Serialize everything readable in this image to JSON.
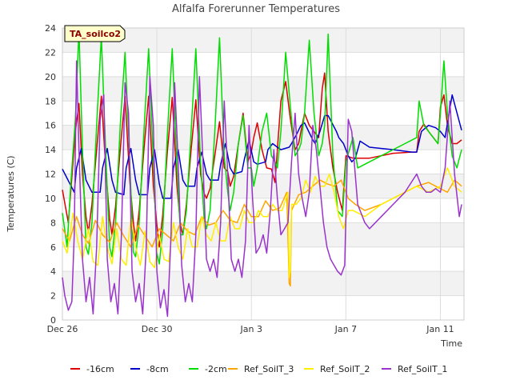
{
  "chart_data": {
    "type": "line",
    "title": "Alfalfa Forerunner Temperatures",
    "xlabel": "Time",
    "ylabel": "Temperatures (C)",
    "site_tag": "TA_soilco2",
    "x_unit": "days from Dec 26 00:00",
    "xlim": [
      0,
      17
    ],
    "ylim": [
      0,
      24
    ],
    "y_ticks": [
      0,
      2,
      4,
      6,
      8,
      10,
      12,
      14,
      16,
      18,
      20,
      22,
      24
    ],
    "x_ticks": [
      {
        "value": 0,
        "label": "Dec 26"
      },
      {
        "value": 4,
        "label": "Dec 30"
      },
      {
        "value": 8,
        "label": "Jan 3"
      },
      {
        "value": 12,
        "label": "Jan 7"
      },
      {
        "value": 16,
        "label": "Jan 11"
      }
    ],
    "grid": true,
    "band_colors": [
      "#ffffff",
      "#f2f2f2"
    ],
    "legend_position": "bottom",
    "series": [
      {
        "name": "-16cm",
        "color": "#dd0000",
        "x": [
          0.0,
          0.25,
          0.45,
          0.55,
          0.7,
          0.85,
          1.0,
          1.1,
          1.25,
          1.45,
          1.65,
          1.85,
          2.0,
          2.1,
          2.25,
          2.45,
          2.65,
          2.85,
          3.0,
          3.1,
          3.25,
          3.45,
          3.65,
          3.85,
          4.0,
          4.1,
          4.25,
          4.45,
          4.65,
          4.85,
          5.0,
          5.1,
          5.25,
          5.45,
          5.65,
          5.85,
          6.0,
          6.1,
          6.25,
          6.45,
          6.65,
          6.85,
          7.0,
          7.1,
          7.25,
          7.45,
          7.65,
          7.85,
          8.0,
          8.1,
          8.25,
          8.45,
          8.65,
          8.85,
          9.0,
          9.1,
          9.25,
          9.45,
          9.65,
          9.85,
          10.0,
          10.1,
          10.25,
          10.45,
          10.65,
          10.85,
          11.0,
          11.1,
          11.25,
          11.45,
          11.65,
          11.85,
          12.0,
          12.3,
          13.0,
          14.0,
          14.8,
          15.0,
          15.1,
          15.3,
          15.5,
          15.7,
          15.9,
          16.0,
          16.15,
          16.3,
          16.5,
          16.7,
          16.9
        ],
        "y": [
          10.7,
          8.0,
          13.0,
          15.5,
          17.8,
          12.0,
          8.5,
          7.2,
          9.5,
          14.0,
          18.4,
          12.0,
          8.3,
          7.0,
          9.3,
          14.0,
          18.4,
          11.5,
          8.1,
          6.5,
          9.0,
          14.0,
          18.4,
          11.0,
          7.8,
          6.0,
          8.7,
          14.0,
          18.3,
          11.0,
          7.8,
          7.0,
          9.5,
          14.0,
          18.1,
          12.0,
          10.4,
          10.0,
          10.8,
          13.5,
          16.3,
          12.5,
          12.2,
          11.0,
          11.8,
          14.5,
          17.0,
          13.0,
          13.8,
          15.0,
          16.2,
          14.0,
          12.5,
          12.4,
          11.3,
          14.0,
          18.0,
          19.6,
          16.5,
          14.0,
          14.5,
          15.5,
          17.0,
          16.0,
          15.5,
          15.0,
          19.0,
          20.3,
          15.5,
          12.5,
          10.5,
          9.0,
          13.5,
          13.3,
          13.3,
          13.7,
          13.8,
          13.8,
          15.5,
          16.1,
          15.5,
          15.0,
          14.5,
          17.5,
          18.5,
          16.0,
          14.5,
          14.5,
          14.8
        ]
      },
      {
        "name": "-8cm",
        "color": "#0000cc",
        "x": [
          0.0,
          0.5,
          0.6,
          0.8,
          1.0,
          1.25,
          1.6,
          1.7,
          1.9,
          2.1,
          2.25,
          2.6,
          2.7,
          2.9,
          3.1,
          3.25,
          3.6,
          3.7,
          3.9,
          4.1,
          4.25,
          4.6,
          4.7,
          4.9,
          5.1,
          5.25,
          5.6,
          5.7,
          5.9,
          6.1,
          6.25,
          6.6,
          6.7,
          6.9,
          7.1,
          7.25,
          7.6,
          7.7,
          7.9,
          8.1,
          8.25,
          8.6,
          8.7,
          8.9,
          9.1,
          9.25,
          9.6,
          9.7,
          9.9,
          10.1,
          10.25,
          10.6,
          10.7,
          10.9,
          11.1,
          11.25,
          11.6,
          11.7,
          11.9,
          12.1,
          12.25,
          12.4,
          12.6,
          13.0,
          14.0,
          14.8,
          15.0,
          15.2,
          15.5,
          15.8,
          16.0,
          16.2,
          16.5,
          16.9
        ],
        "y": [
          12.4,
          10.5,
          12.5,
          14.1,
          11.5,
          10.5,
          10.5,
          12.5,
          14.1,
          11.5,
          10.5,
          10.3,
          12.5,
          14.1,
          11.5,
          10.3,
          10.3,
          12.5,
          14.0,
          11.2,
          10.0,
          10.0,
          12.5,
          14.0,
          11.5,
          11.0,
          11.0,
          12.5,
          13.8,
          12.0,
          11.5,
          11.5,
          12.8,
          14.5,
          12.5,
          12.0,
          12.2,
          13.2,
          14.8,
          13.0,
          12.8,
          13.0,
          14.0,
          14.5,
          14.2,
          14.0,
          14.2,
          14.5,
          15.2,
          16.0,
          16.2,
          14.8,
          14.5,
          15.5,
          16.8,
          16.8,
          15.5,
          15.0,
          14.5,
          13.5,
          13.0,
          13.3,
          14.7,
          14.2,
          14.0,
          13.8,
          13.8,
          15.5,
          16.0,
          15.8,
          15.5,
          15.0,
          18.5,
          15.6
        ]
      },
      {
        "name": "-2cm",
        "color": "#00dd00",
        "x": [
          0.0,
          0.2,
          0.35,
          0.55,
          0.7,
          0.85,
          1.0,
          1.1,
          1.25,
          1.45,
          1.65,
          1.85,
          2.0,
          2.1,
          2.25,
          2.45,
          2.65,
          2.85,
          3.0,
          3.1,
          3.25,
          3.45,
          3.65,
          3.85,
          4.0,
          4.1,
          4.25,
          4.45,
          4.65,
          4.85,
          5.0,
          5.1,
          5.25,
          5.45,
          5.65,
          5.85,
          6.0,
          6.1,
          6.25,
          6.45,
          6.65,
          6.85,
          7.0,
          7.1,
          7.25,
          7.45,
          7.65,
          7.85,
          8.0,
          8.1,
          8.25,
          8.45,
          8.65,
          8.85,
          9.0,
          9.1,
          9.25,
          9.45,
          9.65,
          9.85,
          10.0,
          10.1,
          10.25,
          10.45,
          10.65,
          10.85,
          11.0,
          11.1,
          11.25,
          11.45,
          11.65,
          11.85,
          12.0,
          12.3,
          12.5,
          13.5,
          14.5,
          15.0,
          15.1,
          15.3,
          15.5,
          15.7,
          15.9,
          16.0,
          16.15,
          16.3,
          16.5,
          16.7,
          16.9
        ],
        "y": [
          8.8,
          6.0,
          11.0,
          16.5,
          23.8,
          14.0,
          6.0,
          5.4,
          8.0,
          16.0,
          23.3,
          13.0,
          6.0,
          5.2,
          8.0,
          16.0,
          22.0,
          13.0,
          5.6,
          5.2,
          8.0,
          15.5,
          22.3,
          13.0,
          5.5,
          4.6,
          7.5,
          15.5,
          22.3,
          12.5,
          7.0,
          7.0,
          9.0,
          15.5,
          22.3,
          13.0,
          8.3,
          7.5,
          9.0,
          15.5,
          23.2,
          13.5,
          10.5,
          9.0,
          10.5,
          14.5,
          16.8,
          12.5,
          12.5,
          11.0,
          12.5,
          15.5,
          17.0,
          13.5,
          13.0,
          12.5,
          15.5,
          22.0,
          17.5,
          13.5,
          14.0,
          14.5,
          17.0,
          23.0,
          17.0,
          13.5,
          14.5,
          16.0,
          23.5,
          13.5,
          9.0,
          8.5,
          13.0,
          15.0,
          12.5,
          13.5,
          14.5,
          15.0,
          18.0,
          16.0,
          15.5,
          15.0,
          14.5,
          17.0,
          21.3,
          17.0,
          13.5,
          12.5,
          14.0
        ]
      },
      {
        "name": "Ref_SoilT_3",
        "color": "#ffa500",
        "x": [
          0.0,
          0.3,
          0.6,
          0.85,
          1.1,
          1.4,
          1.7,
          2.0,
          2.3,
          2.6,
          2.9,
          3.2,
          3.5,
          3.8,
          4.1,
          4.4,
          4.7,
          5.0,
          5.3,
          5.6,
          5.9,
          6.2,
          6.5,
          6.8,
          7.1,
          7.4,
          7.7,
          8.0,
          8.3,
          8.6,
          8.9,
          9.2,
          9.5,
          9.6,
          9.65,
          9.7,
          10.0,
          10.3,
          10.6,
          10.9,
          11.2,
          11.5,
          11.8,
          12.1,
          12.4,
          12.8,
          13.5,
          14.5,
          15.0,
          15.5,
          16.0,
          16.3,
          16.6,
          16.9
        ],
        "y": [
          7.5,
          6.5,
          8.5,
          7.0,
          6.3,
          8.2,
          7.0,
          6.4,
          8.0,
          6.9,
          6.0,
          7.8,
          6.9,
          6.0,
          7.5,
          7.0,
          6.5,
          8.0,
          7.3,
          7.0,
          8.5,
          7.8,
          8.0,
          9.0,
          8.2,
          8.0,
          9.5,
          8.5,
          8.5,
          9.8,
          9.0,
          9.2,
          10.5,
          3.0,
          2.8,
          9.0,
          10.3,
          10.5,
          11.0,
          11.5,
          11.2,
          11.0,
          11.5,
          10.0,
          9.5,
          9.0,
          9.5,
          10.5,
          11.0,
          11.3,
          10.8,
          10.5,
          11.5,
          11.0
        ]
      },
      {
        "name": "Ref_SoilT_2",
        "color": "#ffee00",
        "x": [
          0.0,
          0.2,
          0.45,
          0.65,
          0.85,
          1.1,
          1.3,
          1.5,
          1.7,
          1.9,
          2.1,
          2.3,
          2.5,
          2.7,
          2.9,
          3.1,
          3.3,
          3.5,
          3.7,
          3.9,
          4.1,
          4.3,
          4.5,
          4.7,
          4.9,
          5.1,
          5.3,
          5.5,
          5.7,
          5.9,
          6.1,
          6.3,
          6.5,
          6.7,
          6.9,
          7.1,
          7.3,
          7.5,
          7.7,
          7.9,
          8.1,
          8.3,
          8.5,
          8.7,
          8.9,
          9.1,
          9.3,
          9.55,
          9.6,
          9.65,
          9.7,
          9.9,
          10.1,
          10.3,
          10.5,
          10.7,
          10.9,
          11.1,
          11.3,
          11.5,
          11.7,
          11.9,
          12.1,
          12.3,
          12.8,
          13.5,
          14.5,
          15.0,
          15.5,
          16.0,
          16.3,
          16.6,
          16.9
        ],
        "y": [
          6.5,
          5.5,
          8.8,
          6.5,
          5.0,
          7.5,
          4.8,
          4.5,
          8.5,
          6.0,
          4.6,
          7.5,
          5.0,
          4.5,
          8.5,
          6.0,
          4.5,
          7.3,
          4.8,
          4.3,
          7.0,
          5.0,
          4.8,
          8.0,
          6.0,
          5.0,
          7.5,
          6.0,
          6.0,
          8.5,
          7.0,
          6.5,
          8.0,
          6.5,
          6.5,
          8.5,
          7.5,
          7.5,
          9.0,
          8.0,
          8.0,
          9.0,
          8.5,
          8.5,
          9.5,
          9.0,
          9.0,
          10.5,
          3.5,
          4.0,
          9.5,
          9.5,
          10.0,
          11.5,
          10.5,
          11.8,
          11.0,
          11.0,
          12.0,
          10.5,
          8.5,
          7.5,
          9.0,
          9.0,
          8.5,
          9.5,
          10.5,
          11.0,
          10.5,
          11.0,
          12.5,
          11.0,
          10.5
        ]
      },
      {
        "name": "Ref_SoilT_1",
        "color": "#9933cc",
        "x": [
          0.0,
          0.1,
          0.25,
          0.4,
          0.5,
          0.6,
          0.7,
          0.85,
          1.0,
          1.15,
          1.3,
          1.45,
          1.6,
          1.75,
          1.9,
          2.05,
          2.2,
          2.35,
          2.5,
          2.65,
          2.8,
          2.95,
          3.1,
          3.25,
          3.4,
          3.55,
          3.7,
          3.85,
          4.0,
          4.15,
          4.3,
          4.45,
          4.6,
          4.75,
          4.9,
          5.05,
          5.2,
          5.35,
          5.5,
          5.65,
          5.8,
          5.95,
          6.1,
          6.25,
          6.4,
          6.55,
          6.7,
          6.85,
          7.0,
          7.15,
          7.3,
          7.45,
          7.6,
          7.75,
          7.9,
          8.05,
          8.2,
          8.35,
          8.5,
          8.65,
          8.8,
          8.95,
          9.1,
          9.25,
          9.4,
          9.55,
          9.7,
          9.85,
          10.0,
          10.15,
          10.3,
          10.45,
          10.6,
          10.75,
          10.9,
          11.05,
          11.2,
          11.35,
          11.5,
          11.65,
          11.8,
          11.95,
          12.1,
          12.25,
          12.5,
          12.8,
          13.0,
          13.5,
          14.0,
          14.5,
          15.0,
          15.2,
          15.4,
          15.6,
          15.8,
          16.0,
          16.2,
          16.4,
          16.6,
          16.8,
          16.9
        ],
        "y": [
          3.5,
          2.0,
          0.8,
          1.5,
          7.0,
          21.3,
          14.0,
          5.0,
          1.5,
          3.5,
          0.5,
          6.0,
          16.5,
          18.5,
          5.0,
          1.5,
          3.0,
          0.5,
          7.0,
          19.5,
          17.0,
          4.0,
          1.5,
          3.0,
          0.5,
          6.0,
          20.0,
          16.0,
          4.0,
          1.0,
          2.5,
          0.3,
          7.0,
          19.5,
          13.0,
          4.5,
          1.5,
          3.0,
          1.5,
          7.0,
          20.0,
          13.0,
          5.0,
          4.0,
          5.0,
          3.5,
          8.0,
          18.0,
          12.0,
          5.0,
          4.0,
          5.0,
          3.5,
          6.5,
          16.0,
          10.0,
          5.5,
          6.0,
          7.0,
          5.5,
          9.0,
          14.0,
          10.0,
          7.0,
          7.5,
          8.0,
          13.0,
          17.0,
          12.0,
          10.0,
          8.5,
          10.5,
          16.0,
          14.0,
          11.0,
          8.0,
          6.0,
          5.0,
          4.5,
          4.0,
          3.7,
          4.5,
          16.5,
          15.5,
          9.5,
          8.0,
          7.5,
          8.5,
          9.5,
          10.5,
          12.0,
          11.0,
          10.5,
          10.5,
          10.8,
          10.5,
          12.5,
          18.0,
          12.0,
          8.5,
          9.5
        ]
      }
    ]
  }
}
